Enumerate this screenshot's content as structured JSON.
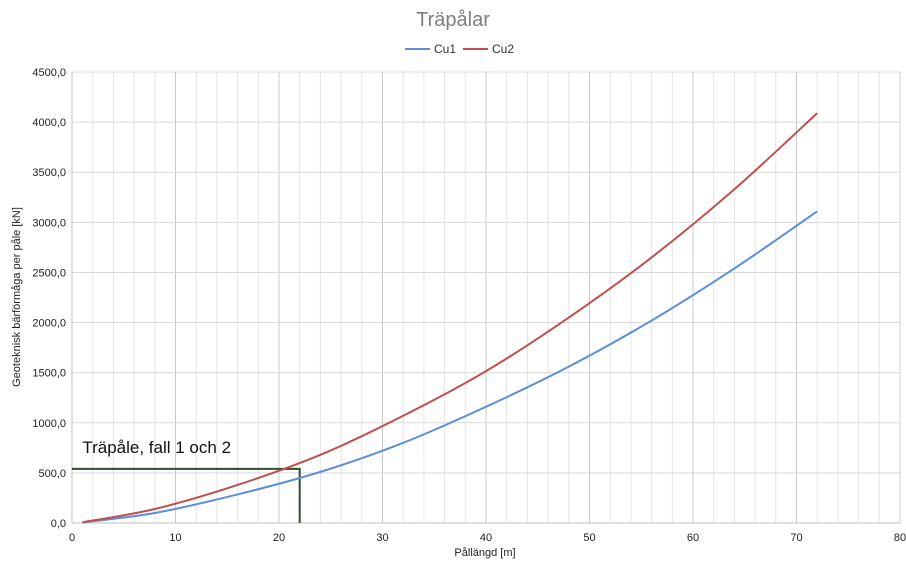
{
  "chart_data": {
    "type": "line",
    "title": "Träpålar",
    "xlabel": "Pållängd [m]",
    "ylabel": "Geoteknisk bärförmåga per påle [kN]",
    "xlim": [
      0,
      80
    ],
    "ylim": [
      0,
      4500
    ],
    "x_ticks": [
      0,
      10,
      20,
      30,
      40,
      50,
      60,
      70,
      80
    ],
    "x_tick_labels": [
      "0",
      "10",
      "20",
      "30",
      "40",
      "50",
      "60",
      "70",
      "80"
    ],
    "y_ticks": [
      0,
      500,
      1000,
      1500,
      2000,
      2500,
      3000,
      3500,
      4000,
      4500
    ],
    "y_tick_labels": [
      "0,0",
      "500,0",
      "1000,0",
      "1500,0",
      "2000,0",
      "2500,0",
      "3000,0",
      "3500,0",
      "4000,0",
      "4500,0"
    ],
    "grid": true,
    "legend_position": "top-center",
    "series": [
      {
        "name": "Cu1",
        "color": "#5b8ed6",
        "x": [
          1,
          8,
          16,
          24,
          32,
          40,
          48,
          56,
          64,
          72
        ],
        "y": [
          5,
          100,
          285,
          510,
          800,
          1160,
          1560,
          2020,
          2540,
          3110
        ]
      },
      {
        "name": "Cu2",
        "color": "#c0504d",
        "x": [
          1,
          8,
          16,
          24,
          32,
          40,
          48,
          56,
          64,
          72
        ],
        "y": [
          7,
          140,
          380,
          680,
          1070,
          1515,
          2050,
          2650,
          3330,
          4090
        ]
      }
    ],
    "annotation": {
      "text": "Träpåle, fall 1 och 2",
      "x": 22,
      "y": 540,
      "color": "#2e4d2e"
    }
  }
}
